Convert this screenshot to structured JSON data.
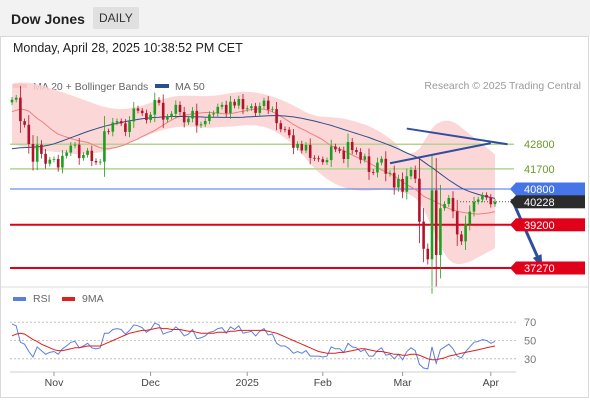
{
  "header": {
    "title": "Dow Jones",
    "timeframe": "DAILY"
  },
  "timestamp": "Monday, April 28, 2025 10:38:52 PM CET",
  "credit": "Research © 2025 Trading Central",
  "colors": {
    "bull": "#1e9e1e",
    "bear": "#b3122b",
    "ma50": "#2d4f8a",
    "ma20": "#f08080",
    "band_fill": "#fbd0d0",
    "support": "#e0001a",
    "resistance": "#b5d38f",
    "pivot": "#4575e8",
    "trend": "#2f4f9e",
    "rsi": "#5b7fe0",
    "rsi_ma": "#e0201a"
  },
  "chart_data": [
    {
      "type": "candlestick",
      "legend": [
        {
          "name": "MA 20 + Bollinger Bands",
          "color": "#f08080"
        },
        {
          "name": "MA 50",
          "color": "#2d4f8a"
        }
      ],
      "x_labels": [
        "Nov",
        "Dec",
        "2025",
        "Feb",
        "Mar",
        "Apr"
      ],
      "x_label_index": [
        10,
        33,
        56,
        74,
        93,
        114
      ],
      "ylim": [
        36600,
        45000
      ],
      "series": {
        "close": [
          44790,
          44880,
          43830,
          43670,
          42810,
          42020,
          42780,
          42370,
          41930,
          42110,
          42140,
          41760,
          42280,
          42430,
          42740,
          42780,
          42180,
          42320,
          42510,
          42050,
          41990,
          42020,
          43380,
          43360,
          43770,
          43830,
          43730,
          43350,
          43820,
          44400,
          44300,
          44190,
          43880,
          44120,
          44780,
          44650,
          43900,
          44030,
          44160,
          44560,
          44240,
          43780,
          43950,
          44290,
          43640,
          43690,
          43840,
          44130,
          44180,
          44470,
          44560,
          44190,
          44700,
          44530,
          44820,
          44370,
          44410,
          44500,
          44200,
          44510,
          44750,
          44350,
          44370,
          43740,
          43470,
          43450,
          43200,
          42640,
          42810,
          42520,
          42770,
          42190,
          42170,
          42130,
          42000,
          42090,
          42700,
          42570,
          42510,
          42140,
          42900,
          42540,
          42450,
          42110,
          42260,
          41560,
          41540,
          41980,
          42150,
          41480,
          41520,
          40870,
          41250,
          40680,
          41370,
          41650,
          41260,
          39340,
          38130,
          37660,
          40740,
          37850,
          39940,
          40130,
          40400,
          39800,
          38770,
          38460,
          39230,
          39790,
          40230,
          40330,
          40530,
          40420,
          40120,
          40230
        ],
        "ma20": [
          44250,
          44320,
          44360,
          44340,
          44280,
          44120,
          43950,
          43830,
          43680,
          43520,
          43380,
          43250,
          43180,
          43120,
          43060,
          43000,
          42960,
          42920,
          42880,
          42800,
          42720,
          42640,
          42610,
          42600,
          42630,
          42670,
          42720,
          42790,
          42880,
          42960,
          43040,
          43140,
          43230,
          43330,
          43420,
          43540,
          43650,
          43780,
          43880,
          43980,
          44040,
          44090,
          44130,
          44160,
          44180,
          44200,
          44220,
          44220,
          44210,
          44200,
          44170,
          44160,
          44170,
          44200,
          44240,
          44270,
          44310,
          44350,
          44370,
          44380,
          44360,
          44320,
          44250,
          44160,
          44050,
          43930,
          43810,
          43680,
          43580,
          43480,
          43400,
          43290,
          43200,
          43100,
          43000,
          42860,
          42730,
          42660,
          42590,
          42510,
          42420,
          42320,
          42230,
          42150,
          42070,
          41970,
          41860,
          41760,
          41650,
          41570,
          41480,
          41380,
          41250,
          41110,
          40990,
          40890,
          40780,
          40640,
          40480,
          40380,
          40310,
          40210,
          40120,
          40020,
          39930,
          39870,
          39810,
          39770,
          39740,
          39710,
          39690,
          39680,
          39700,
          39720,
          39750,
          39790
        ],
        "bb_upper": [
          45500,
          45550,
          45560,
          45560,
          45550,
          45520,
          45480,
          45430,
          45370,
          45310,
          45250,
          45180,
          45120,
          45060,
          45000,
          44930,
          44860,
          44790,
          44720,
          44650,
          44580,
          44520,
          44470,
          44430,
          44400,
          44380,
          44370,
          44380,
          44400,
          44440,
          44480,
          44530,
          44590,
          44650,
          44710,
          44770,
          44820,
          44870,
          44910,
          44940,
          44960,
          44970,
          44970,
          44970,
          44960,
          44950,
          44950,
          44960,
          44970,
          44990,
          45020,
          45050,
          45080,
          45110,
          45130,
          45140,
          45140,
          45130,
          45110,
          45080,
          45040,
          44990,
          44930,
          44860,
          44790,
          44710,
          44620,
          44530,
          44430,
          44330,
          44230,
          44150,
          44090,
          44050,
          44030,
          44020,
          44010,
          43990,
          43970,
          43940,
          43900,
          43850,
          43800,
          43740,
          43680,
          43610,
          43520,
          43420,
          43310,
          43180,
          43050,
          42900,
          42700,
          42480,
          42400,
          42400,
          42450,
          42600,
          42900,
          43200,
          43500,
          43700,
          43800,
          43850,
          43850,
          43800,
          43700,
          43550,
          43400,
          43250,
          43100,
          42950,
          42800,
          42650,
          42500,
          42350
        ],
        "bb_lower": [
          42800,
          42760,
          42720,
          42680,
          42640,
          42600,
          42560,
          42530,
          42500,
          42480,
          42460,
          42440,
          42420,
          42400,
          42380,
          42370,
          42360,
          42360,
          42370,
          42390,
          42410,
          42440,
          42480,
          42530,
          42590,
          42650,
          42720,
          42800,
          42880,
          42960,
          43040,
          43110,
          43180,
          43250,
          43320,
          43380,
          43440,
          43490,
          43530,
          43560,
          43580,
          43590,
          43590,
          43580,
          43570,
          43550,
          43540,
          43540,
          43550,
          43560,
          43570,
          43580,
          43590,
          43600,
          43620,
          43640,
          43650,
          43650,
          43640,
          43610,
          43570,
          43510,
          43430,
          43330,
          43210,
          43080,
          42930,
          42760,
          42580,
          42380,
          42160,
          41940,
          41730,
          41550,
          41390,
          41250,
          41130,
          41030,
          40940,
          40870,
          40810,
          40770,
          40740,
          40730,
          40730,
          40730,
          40740,
          40750,
          40760,
          40760,
          40750,
          40730,
          40700,
          40660,
          40600,
          40520,
          40400,
          40200,
          39900,
          39500,
          39100,
          38700,
          38300,
          37900,
          37650,
          37500,
          37450,
          37450,
          37500,
          37550,
          37650,
          37750,
          37850,
          37950,
          38050,
          38150
        ],
        "ma50": [
          42600,
          42620,
          42640,
          42650,
          42660,
          42670,
          42680,
          42700,
          42730,
          42770,
          42820,
          42880,
          42950,
          43020,
          43090,
          43160,
          43230,
          43300,
          43370,
          43430,
          43490,
          43550,
          43600,
          43650,
          43690,
          43730,
          43770,
          43810,
          43850,
          43880,
          43910,
          43940,
          43960,
          43980,
          44000,
          44010,
          44020,
          44030,
          44040,
          44040,
          44040,
          44040,
          44030,
          44030,
          44020,
          44020,
          44010,
          44010,
          44010,
          44010,
          44000,
          44000,
          44000,
          44000,
          44000,
          44010,
          44020,
          44030,
          44040,
          44050,
          44060,
          44070,
          44080,
          44080,
          44070,
          44060,
          44040,
          44020,
          43990,
          43960,
          43920,
          43880,
          43840,
          43790,
          43740,
          43690,
          43640,
          43580,
          43520,
          43460,
          43400,
          43340,
          43280,
          43220,
          43160,
          43100,
          43030,
          42960,
          42890,
          42820,
          42750,
          42670,
          42590,
          42500,
          42410,
          42330,
          42250,
          42150,
          42020,
          41880,
          41760,
          41620,
          41480,
          41340,
          41200,
          41080,
          40960,
          40850,
          40760,
          40680,
          40620,
          40560,
          40510,
          40460,
          40420,
          40380
        ]
      },
      "levels": [
        {
          "label": "42800",
          "value": 42800,
          "kind": "resistance"
        },
        {
          "label": "41700",
          "value": 41700,
          "kind": "resistance"
        },
        {
          "label": "40800",
          "value": 40800,
          "kind": "pivot"
        },
        {
          "label": "40228",
          "value": 40228,
          "kind": "last"
        },
        {
          "label": "39200",
          "value": 39200,
          "kind": "support"
        },
        {
          "label": "37270",
          "value": 37270,
          "kind": "support"
        }
      ],
      "trendlines": [
        {
          "from": [
            90,
            41950
          ],
          "to": [
            114,
            42850
          ]
        },
        {
          "from": [
            94,
            43500
          ],
          "to": [
            118,
            42800
          ]
        }
      ],
      "arrow": {
        "from": [
          119,
          40350
        ],
        "to": [
          126,
          37400
        ]
      }
    },
    {
      "type": "line",
      "legend": [
        {
          "name": "RSI",
          "color": "#5b7fe0"
        },
        {
          "name": "9MA",
          "color": "#e0201a"
        }
      ],
      "ylim": [
        20,
        80
      ],
      "y_ticks": [
        "70",
        "50",
        "30"
      ],
      "series": [
        {
          "name": "RSI",
          "values": [
            68,
            66,
            48,
            46,
            38,
            32,
            43,
            39,
            35,
            37,
            38,
            35,
            41,
            44,
            48,
            49,
            42,
            44,
            47,
            42,
            41,
            42,
            58,
            58,
            62,
            63,
            62,
            57,
            61,
            67,
            66,
            64,
            59,
            62,
            69,
            67,
            57,
            59,
            60,
            65,
            61,
            55,
            57,
            62,
            52,
            53,
            55,
            59,
            60,
            63,
            64,
            58,
            65,
            62,
            66,
            58,
            59,
            60,
            55,
            60,
            63,
            56,
            57,
            47,
            44,
            44,
            41,
            36,
            38,
            36,
            39,
            33,
            33,
            33,
            32,
            33,
            43,
            41,
            41,
            37,
            47,
            43,
            42,
            38,
            40,
            33,
            33,
            39,
            42,
            34,
            35,
            30,
            35,
            29,
            38,
            42,
            39,
            24,
            20,
            19,
            43,
            25,
            40,
            43,
            46,
            41,
            33,
            31,
            38,
            43,
            48,
            49,
            51,
            50,
            47,
            49
          ]
        },
        {
          "name": "9MA",
          "values": [
            55,
            57,
            58,
            57,
            54,
            51,
            49,
            46,
            44,
            42,
            40,
            39,
            39,
            40,
            41,
            42,
            42,
            43,
            44,
            44,
            44,
            44,
            46,
            48,
            50,
            52,
            54,
            56,
            58,
            59,
            60,
            61,
            61,
            62,
            63,
            64,
            63,
            63,
            62,
            62,
            62,
            61,
            60,
            60,
            59,
            58,
            58,
            58,
            58,
            59,
            59,
            59,
            60,
            60,
            61,
            61,
            61,
            61,
            61,
            61,
            61,
            60,
            59,
            58,
            56,
            54,
            52,
            50,
            48,
            46,
            44,
            42,
            40,
            38,
            37,
            36,
            36,
            36,
            37,
            37,
            38,
            39,
            40,
            41,
            41,
            40,
            39,
            38,
            38,
            37,
            36,
            35,
            35,
            34,
            34,
            35,
            35,
            34,
            32,
            30,
            29,
            29,
            30,
            31,
            33,
            34,
            35,
            36,
            37,
            38,
            39,
            40,
            41,
            42,
            43,
            44
          ]
        }
      ]
    }
  ]
}
